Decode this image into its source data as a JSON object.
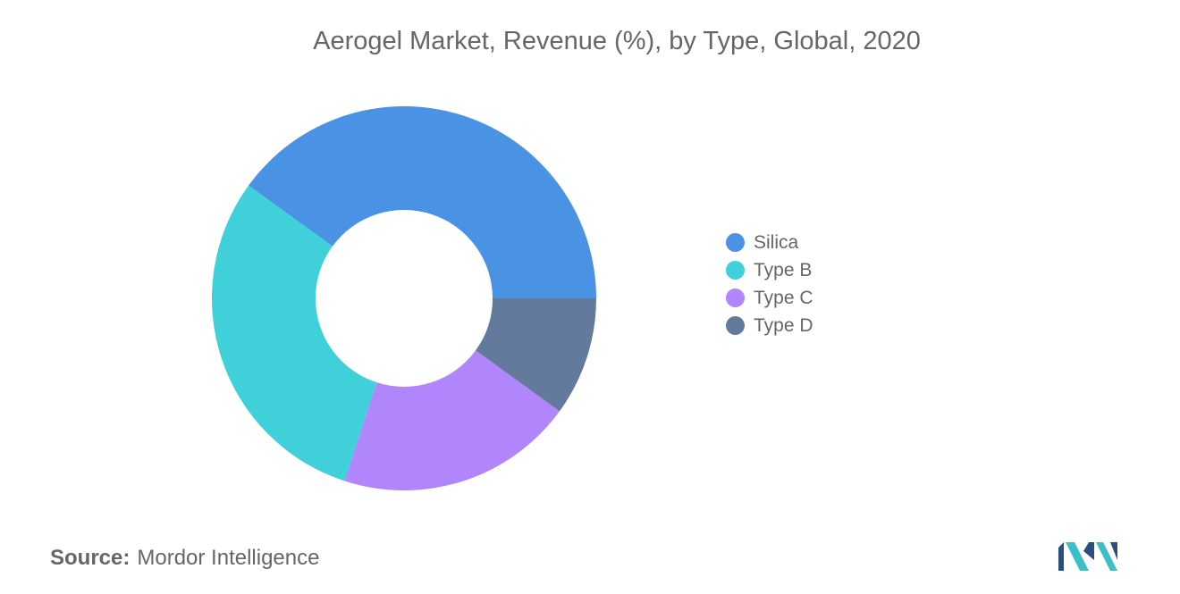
{
  "chart_data": {
    "type": "pie",
    "title": "Aerogel Market, Revenue (%), by Type, Global, 2020",
    "donut": true,
    "categories": [
      "Silica",
      "Type B",
      "Type C",
      "Type D"
    ],
    "values": [
      40,
      30,
      20,
      10
    ],
    "colors": [
      "#4a92e4",
      "#40d0da",
      "#b185fb",
      "#647a9c"
    ],
    "legend_position": "right"
  },
  "source": {
    "label": "Source:",
    "text": "Mordor Intelligence"
  },
  "logo": {
    "icon": "mordor-intelligence-logo-icon",
    "colors": [
      "#2a4e7e",
      "#3cc0c8"
    ]
  }
}
